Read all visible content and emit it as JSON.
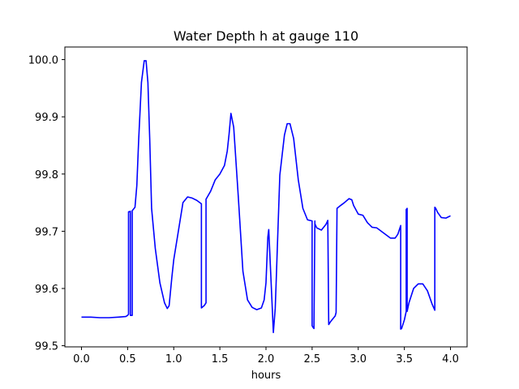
{
  "chart_data": {
    "type": "line",
    "title": "Water Depth h at gauge 110",
    "xlabel": "hours",
    "ylabel": "",
    "xlim": [
      -0.18,
      4.18
    ],
    "ylim": [
      99.498,
      100.022
    ],
    "xticks": [
      0.0,
      0.5,
      1.0,
      1.5,
      2.0,
      2.5,
      3.0,
      3.5,
      4.0
    ],
    "xtick_labels": [
      "0.0",
      "0.5",
      "1.0",
      "1.5",
      "2.0",
      "2.5",
      "3.0",
      "3.5",
      "4.0"
    ],
    "yticks": [
      99.5,
      99.6,
      99.7,
      99.8,
      99.9,
      100.0
    ],
    "ytick_labels": [
      "99.5",
      "99.6",
      "99.7",
      "99.8",
      "99.9",
      "100.0"
    ],
    "grid": false,
    "line_color": "#0000ff",
    "series": [
      {
        "x": [
          0.0,
          0.1,
          0.2,
          0.3,
          0.4,
          0.48,
          0.5,
          0.51,
          0.51,
          0.52,
          0.53,
          0.53,
          0.54,
          0.55,
          0.55,
          0.58,
          0.6,
          0.62,
          0.65,
          0.68,
          0.7,
          0.72,
          0.74,
          0.76,
          0.8,
          0.85,
          0.9,
          0.93,
          0.95,
          0.98,
          1.0,
          1.05,
          1.1,
          1.15,
          1.2,
          1.25,
          1.3,
          1.3,
          1.33,
          1.35,
          1.35,
          1.4,
          1.45,
          1.5,
          1.55,
          1.58,
          1.6,
          1.62,
          1.65,
          1.7,
          1.75,
          1.8,
          1.85,
          1.9,
          1.95,
          1.98,
          2.0,
          2.02,
          2.03,
          2.08,
          2.1,
          2.11,
          2.15,
          2.2,
          2.23,
          2.26,
          2.3,
          2.35,
          2.4,
          2.45,
          2.5,
          2.5,
          2.51,
          2.52,
          2.53,
          2.53,
          2.55,
          2.6,
          2.65,
          2.67,
          2.68,
          2.7,
          2.75,
          2.76,
          2.77,
          2.8,
          2.85,
          2.9,
          2.93,
          2.95,
          3.0,
          3.05,
          3.1,
          3.15,
          3.2,
          3.25,
          3.3,
          3.35,
          3.4,
          3.43,
          3.46,
          3.46,
          3.47,
          3.5,
          3.52,
          3.52,
          3.53,
          3.53,
          3.55,
          3.6,
          3.65,
          3.7,
          3.75,
          3.8,
          3.83,
          3.83,
          3.84,
          3.86,
          3.9,
          3.95,
          4.0
        ],
        "y": [
          99.55,
          99.55,
          99.549,
          99.549,
          99.55,
          99.551,
          99.553,
          99.555,
          99.734,
          99.734,
          99.735,
          99.553,
          99.553,
          99.553,
          99.736,
          99.742,
          99.78,
          99.86,
          99.96,
          99.998,
          99.998,
          99.96,
          99.86,
          99.74,
          99.67,
          99.61,
          99.575,
          99.565,
          99.57,
          99.62,
          99.65,
          99.7,
          99.75,
          99.76,
          99.758,
          99.754,
          99.748,
          99.566,
          99.57,
          99.575,
          99.756,
          99.77,
          99.79,
          99.8,
          99.815,
          99.84,
          99.87,
          99.906,
          99.882,
          99.76,
          99.63,
          99.58,
          99.567,
          99.563,
          99.566,
          99.58,
          99.61,
          99.69,
          99.703,
          99.523,
          99.565,
          99.61,
          99.798,
          99.868,
          99.888,
          99.888,
          99.862,
          99.79,
          99.74,
          99.72,
          99.718,
          99.535,
          99.532,
          99.53,
          99.718,
          99.713,
          99.706,
          99.702,
          99.712,
          99.719,
          99.537,
          99.542,
          99.552,
          99.558,
          99.74,
          99.744,
          99.75,
          99.757,
          99.755,
          99.745,
          99.73,
          99.728,
          99.715,
          99.707,
          99.706,
          99.7,
          99.694,
          99.688,
          99.688,
          99.695,
          99.71,
          99.529,
          99.53,
          99.545,
          99.56,
          99.738,
          99.74,
          99.56,
          99.575,
          99.6,
          99.608,
          99.608,
          99.596,
          99.573,
          99.562,
          99.742,
          99.74,
          99.733,
          99.724,
          99.723,
          99.727
        ]
      }
    ]
  }
}
